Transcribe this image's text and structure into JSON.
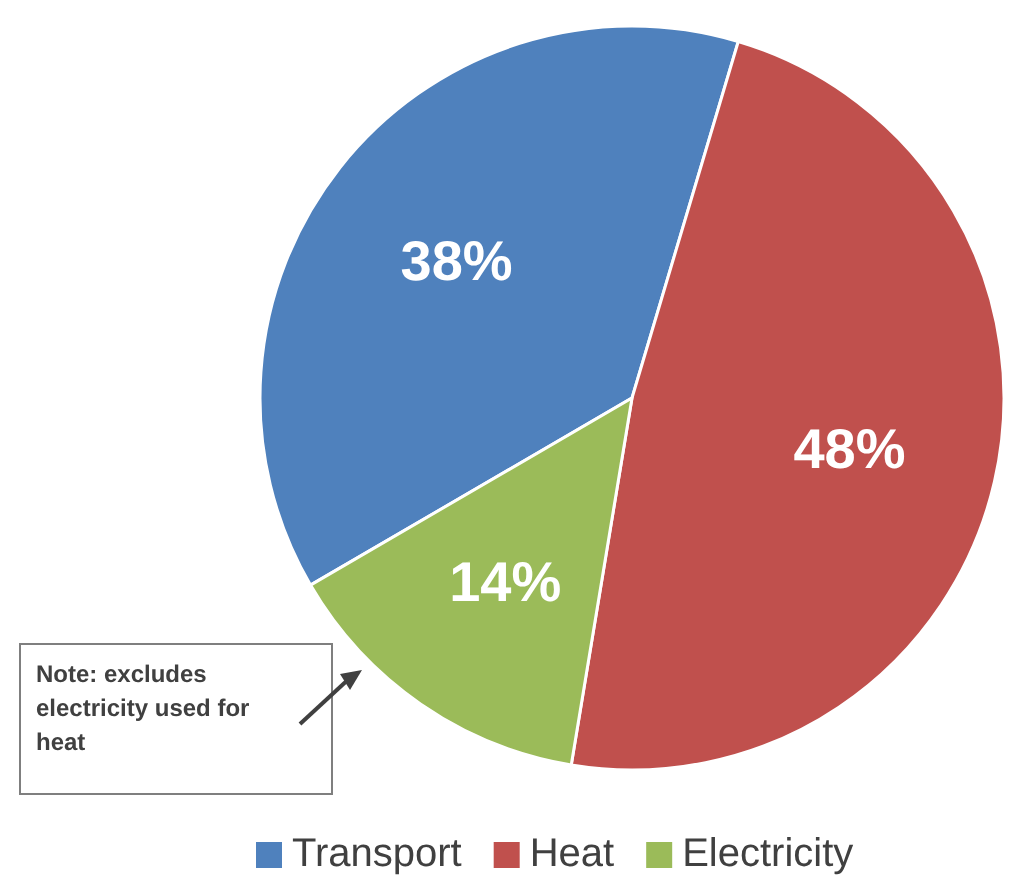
{
  "chart_data": {
    "type": "pie",
    "categories": [
      "Transport",
      "Heat",
      "Electricity"
    ],
    "values": [
      38,
      48,
      14
    ],
    "colors": [
      "#4f81bd",
      "#c0504d",
      "#9bbb59"
    ],
    "value_labels": [
      "38%",
      "48%",
      "14%"
    ],
    "legend": "bottom",
    "annotations": [
      "Note: excludes electricity used for heat"
    ]
  }
}
